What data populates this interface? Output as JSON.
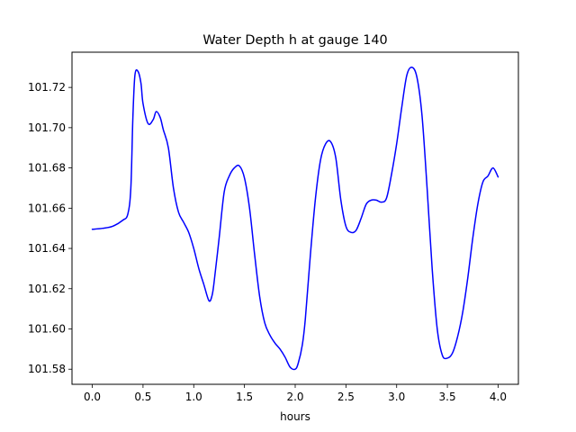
{
  "chart_data": {
    "type": "line",
    "title": "Water Depth h at gauge 140",
    "xlabel": "hours",
    "ylabel": "",
    "xlim": [
      -0.2,
      4.2
    ],
    "ylim": [
      101.5725,
      101.7375
    ],
    "xticks": [
      0.0,
      0.5,
      1.0,
      1.5,
      2.0,
      2.5,
      3.0,
      3.5,
      4.0
    ],
    "xtick_labels": [
      "0.0",
      "0.5",
      "1.0",
      "1.5",
      "2.0",
      "2.5",
      "3.0",
      "3.5",
      "4.0"
    ],
    "yticks": [
      101.58,
      101.6,
      101.62,
      101.64,
      101.66,
      101.68,
      101.7,
      101.72
    ],
    "ytick_labels": [
      "101.58",
      "101.60",
      "101.62",
      "101.64",
      "101.66",
      "101.68",
      "101.70",
      "101.72"
    ],
    "grid": false,
    "colors": {
      "line": "#0000ff",
      "axes": "#000000",
      "background": "#ffffff"
    },
    "series": [
      {
        "x": [
          0.0,
          0.1,
          0.2,
          0.3,
          0.35,
          0.38,
          0.4,
          0.42,
          0.45,
          0.48,
          0.5,
          0.55,
          0.6,
          0.63,
          0.67,
          0.7,
          0.75,
          0.8,
          0.85,
          0.9,
          0.95,
          1.0,
          1.05,
          1.1,
          1.15,
          1.18,
          1.2,
          1.25,
          1.3,
          1.35,
          1.4,
          1.45,
          1.5,
          1.55,
          1.6,
          1.65,
          1.7,
          1.75,
          1.8,
          1.85,
          1.9,
          1.95,
          2.0,
          2.03,
          2.07,
          2.1,
          2.15,
          2.2,
          2.25,
          2.3,
          2.35,
          2.4,
          2.45,
          2.5,
          2.55,
          2.6,
          2.65,
          2.7,
          2.75,
          2.8,
          2.85,
          2.9,
          2.95,
          3.0,
          3.05,
          3.1,
          3.15,
          3.2,
          3.25,
          3.3,
          3.35,
          3.4,
          3.45,
          3.5,
          3.55,
          3.6,
          3.65,
          3.7,
          3.75,
          3.8,
          3.85,
          3.9,
          3.95,
          4.0
        ],
        "values": [
          101.6495,
          101.65,
          101.651,
          101.654,
          101.657,
          101.67,
          101.705,
          101.726,
          101.728,
          101.722,
          101.712,
          101.702,
          101.704,
          101.708,
          101.705,
          101.699,
          101.69,
          101.67,
          101.658,
          101.653,
          101.648,
          101.64,
          101.63,
          101.622,
          101.614,
          101.6165,
          101.623,
          101.645,
          101.668,
          101.676,
          101.68,
          101.681,
          101.675,
          101.66,
          101.637,
          101.616,
          101.603,
          101.597,
          101.593,
          101.59,
          101.586,
          101.581,
          101.58,
          101.583,
          101.592,
          101.605,
          101.637,
          101.665,
          101.684,
          101.692,
          101.693,
          101.685,
          101.664,
          101.651,
          101.648,
          101.649,
          101.655,
          101.662,
          101.664,
          101.664,
          101.663,
          101.665,
          101.677,
          101.692,
          101.71,
          101.726,
          101.73,
          101.725,
          101.706,
          101.67,
          101.63,
          101.6,
          101.587,
          101.5855,
          101.588,
          101.596,
          101.608,
          101.625,
          101.645,
          101.662,
          101.673,
          101.676,
          101.68,
          101.6755
        ]
      }
    ]
  }
}
